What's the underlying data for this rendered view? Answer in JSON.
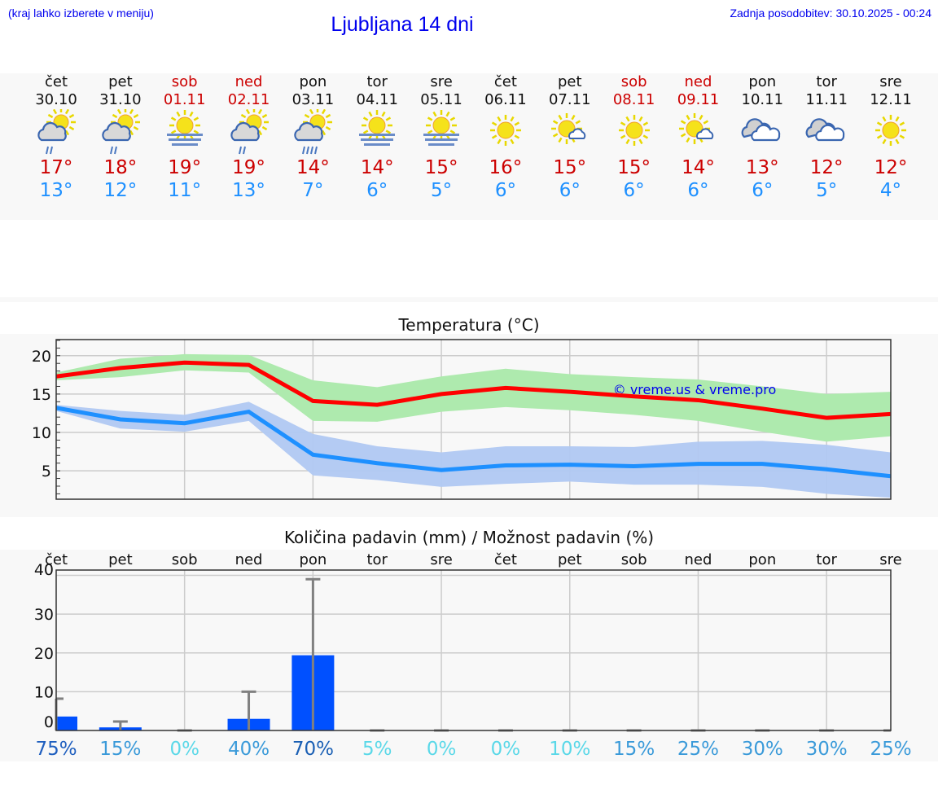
{
  "header": {
    "hint": "(kraj lahko izberete v meniju)",
    "title": "Ljubljana 14 dni",
    "updated": "Zadnja posodobitev: 30.10.2025 - 00:24"
  },
  "colors": {
    "max": "#cc0000",
    "min": "#1e90ff",
    "weekend": "#cc0000",
    "max_line": "#ff0000",
    "max_band": "#aeeaae",
    "min_line": "#1e90ff",
    "min_band": "#b0c8f2",
    "bar": "#0050ff",
    "error_bar": "#808080"
  },
  "days": [
    {
      "name": "čet",
      "date": "30.10",
      "weekend": false,
      "icon": "partly-cloudy-rain-icon",
      "max": "17°",
      "min": "13°"
    },
    {
      "name": "pet",
      "date": "31.10",
      "weekend": false,
      "icon": "partly-cloudy-rain-icon",
      "max": "18°",
      "min": "12°"
    },
    {
      "name": "sob",
      "date": "01.11",
      "weekend": true,
      "icon": "sun-fog-icon",
      "max": "19°",
      "min": "11°"
    },
    {
      "name": "ned",
      "date": "02.11",
      "weekend": true,
      "icon": "partly-cloudy-rain-icon",
      "max": "19°",
      "min": "13°"
    },
    {
      "name": "pon",
      "date": "03.11",
      "weekend": false,
      "icon": "partly-cloudy-heavy-rain-icon",
      "max": "14°",
      "min": "7°"
    },
    {
      "name": "tor",
      "date": "04.11",
      "weekend": false,
      "icon": "sun-fog-icon",
      "max": "14°",
      "min": "6°"
    },
    {
      "name": "sre",
      "date": "05.11",
      "weekend": false,
      "icon": "sun-fog-icon",
      "max": "15°",
      "min": "5°"
    },
    {
      "name": "čet",
      "date": "06.11",
      "weekend": false,
      "icon": "sun-icon",
      "max": "16°",
      "min": "6°"
    },
    {
      "name": "pet",
      "date": "07.11",
      "weekend": false,
      "icon": "sun-small-cloud-icon",
      "max": "15°",
      "min": "6°"
    },
    {
      "name": "sob",
      "date": "08.11",
      "weekend": true,
      "icon": "sun-icon",
      "max": "15°",
      "min": "6°"
    },
    {
      "name": "ned",
      "date": "09.11",
      "weekend": true,
      "icon": "sun-small-cloud-icon",
      "max": "14°",
      "min": "6°"
    },
    {
      "name": "pon",
      "date": "10.11",
      "weekend": false,
      "icon": "cloudy-icon",
      "max": "13°",
      "min": "6°"
    },
    {
      "name": "tor",
      "date": "11.11",
      "weekend": false,
      "icon": "cloudy-icon",
      "max": "12°",
      "min": "5°"
    },
    {
      "name": "sre",
      "date": "12.11",
      "weekend": false,
      "icon": "sun-icon",
      "max": "12°",
      "min": "4°"
    }
  ],
  "chart_data": [
    {
      "type": "line",
      "title": "Temperatura (°C)",
      "watermark": "© vreme.us & vreme.pro",
      "ylim": [
        1.3,
        22.1
      ],
      "yticks": [
        "20",
        "15",
        "10",
        "5"
      ],
      "ytick_values": [
        20,
        15,
        10,
        5
      ],
      "grid": true,
      "series": [
        {
          "role": "max",
          "values": [
            17.3,
            18.4,
            19.1,
            18.8,
            14.1,
            13.6,
            15.0,
            15.8,
            15.3,
            14.7,
            14.2,
            13.1,
            11.9,
            12.4
          ],
          "band_high": [
            17.8,
            19.6,
            20.2,
            20.1,
            16.8,
            15.9,
            17.3,
            18.3,
            17.6,
            17.2,
            16.9,
            16.0,
            15.0,
            15.3
          ],
          "band_low": [
            16.8,
            17.2,
            18.1,
            17.8,
            11.5,
            11.4,
            12.7,
            13.3,
            12.9,
            12.3,
            11.5,
            10.1,
            8.8,
            9.5
          ]
        },
        {
          "role": "min",
          "values": [
            13.2,
            11.7,
            11.2,
            12.7,
            7.1,
            6.0,
            5.1,
            5.7,
            5.8,
            5.6,
            5.9,
            5.9,
            5.2,
            4.3
          ],
          "band_high": [
            13.6,
            12.8,
            12.3,
            14.0,
            9.8,
            8.2,
            7.4,
            8.2,
            8.2,
            8.1,
            8.8,
            8.9,
            8.4,
            7.4
          ],
          "band_low": [
            12.8,
            10.5,
            10.1,
            11.5,
            4.4,
            3.8,
            2.9,
            3.3,
            3.6,
            3.2,
            3.2,
            2.9,
            2.0,
            1.5
          ]
        }
      ]
    },
    {
      "type": "bar",
      "title": "Količina padavin (mm) / Možnost padavin (%)",
      "ylim": [
        0,
        40
      ],
      "yticks": [
        "40",
        "30",
        "20",
        "10",
        "0"
      ],
      "ytick_values": [
        40,
        30,
        20,
        10,
        0
      ],
      "grid": true,
      "categories": [
        "čet",
        "pet",
        "sob",
        "ned",
        "pon",
        "tor",
        "sre",
        "čet",
        "pet",
        "sob",
        "ned",
        "pon",
        "tor",
        "sre"
      ],
      "values": [
        3.6,
        0.8,
        0,
        3.0,
        19.4,
        0,
        0,
        0,
        0,
        0,
        0,
        0,
        0,
        0
      ],
      "error_high": [
        8.2,
        2.3,
        0,
        10,
        39,
        0,
        0,
        0,
        0,
        0,
        0,
        0,
        0,
        0
      ],
      "probability": [
        "75%",
        "15%",
        "0%",
        "40%",
        "70%",
        "5%",
        "0%",
        "0%",
        "10%",
        "15%",
        "25%",
        "30%",
        "30%",
        "25%"
      ],
      "probability_colors": [
        "#1f5fbf",
        "#3a9ad9",
        "#5ad8e8",
        "#3a9ad9",
        "#1a5fb4",
        "#5ad8e8",
        "#5ad8e8",
        "#5ad8e8",
        "#5ad8e8",
        "#3a9ad9",
        "#3a9ad9",
        "#3a9ad9",
        "#3a9ad9",
        "#3a9ad9"
      ]
    }
  ]
}
